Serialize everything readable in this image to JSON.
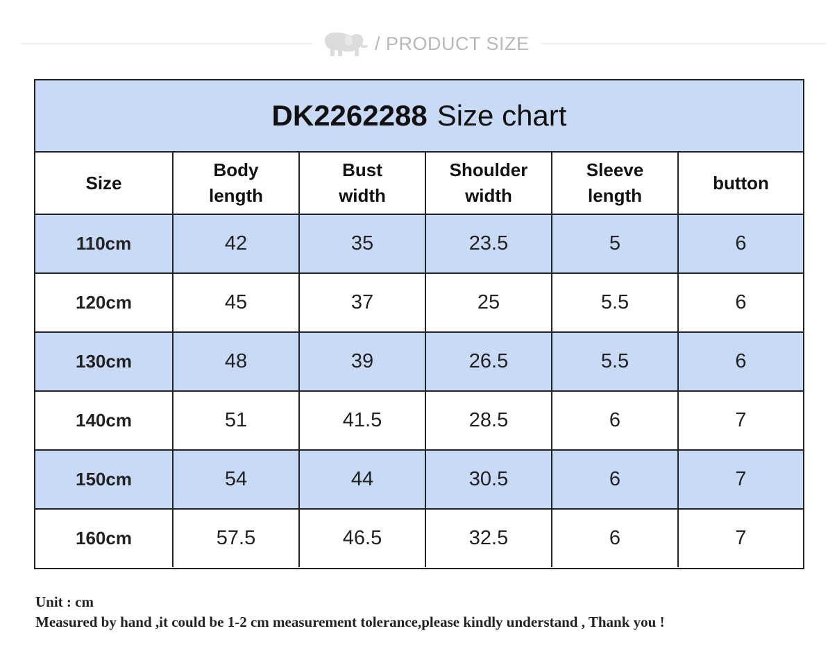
{
  "header": {
    "label": "/ PRODUCT SIZE",
    "logo_icon": "elephant-icon"
  },
  "chart": {
    "model": "DK2262288",
    "title_suffix": "Size chart",
    "columns": [
      {
        "line1": "Size",
        "line2": ""
      },
      {
        "line1": "Body",
        "line2": "length"
      },
      {
        "line1": "Bust",
        "line2": "width"
      },
      {
        "line1": "Shoulder",
        "line2": "width"
      },
      {
        "line1": "Sleeve",
        "line2": "length"
      },
      {
        "line1": "button",
        "line2": ""
      }
    ],
    "rows": [
      [
        "110cm",
        "42",
        "35",
        "23.5",
        "5",
        "6"
      ],
      [
        "120cm",
        "45",
        "37",
        "25",
        "5.5",
        "6"
      ],
      [
        "130cm",
        "48",
        "39",
        "26.5",
        "5.5",
        "6"
      ],
      [
        "140cm",
        "51",
        "41.5",
        "28.5",
        "6",
        "7"
      ],
      [
        "150cm",
        "54",
        "44",
        "30.5",
        "6",
        "7"
      ],
      [
        "160cm",
        "57.5",
        "46.5",
        "32.5",
        "6",
        "7"
      ]
    ]
  },
  "notes": {
    "unit": "Unit : cm",
    "disclaimer": "Measured by hand ,it could be 1-2 cm measurement tolerance,please kindly understand , Thank you !"
  },
  "colors": {
    "shade": "#c9daf6",
    "border": "#222222",
    "header_text": "#b8b8b8"
  }
}
